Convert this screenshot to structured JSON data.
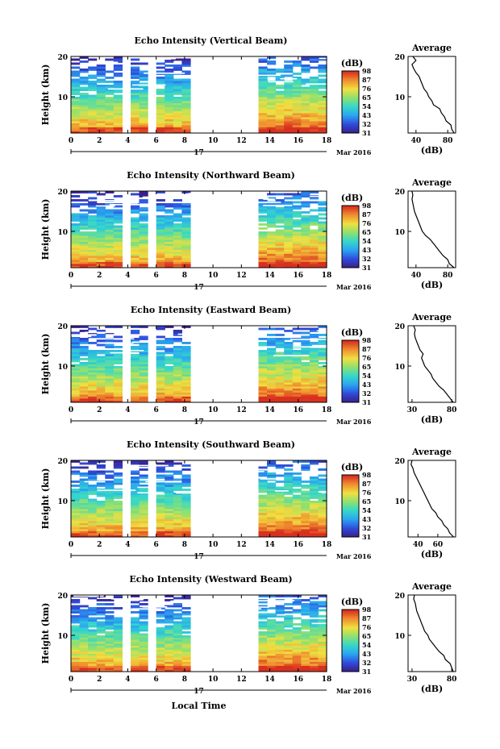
{
  "figure": {
    "x_axis_label": "Local Time",
    "date_center_label": "17",
    "date_right_label": "Mar 2016",
    "colorbar_unit": "(dB)",
    "colorbar_ticks": [
      "31",
      "32",
      "43",
      "54",
      "65",
      "76",
      "87",
      "98"
    ],
    "colormap": [
      "#3a1f8c",
      "#2f4fe0",
      "#2aa7f0",
      "#36d8c8",
      "#8fe070",
      "#f0e040",
      "#f09030",
      "#d83020"
    ],
    "profile_title": "Average",
    "profile_xlabel": "(dB)"
  },
  "chart_data": [
    {
      "type": "heatmap",
      "title": "Echo Intensity (Vertical Beam)",
      "ylabel": "Height (km)",
      "x_ticks": [
        "0",
        "2",
        "4",
        "6",
        "8",
        "10",
        "12",
        "14",
        "16",
        "18"
      ],
      "xlim": [
        0,
        18
      ],
      "y_ticks": [
        "10",
        "20"
      ],
      "ylim": [
        1,
        20
      ],
      "data_gaps_hours": [
        [
          3.8,
          4.3
        ],
        [
          5.5,
          5.8
        ],
        [
          8.3,
          13.2
        ]
      ],
      "profile": {
        "x_ticks": [
          "40",
          "80"
        ],
        "xlim": [
          30,
          90
        ],
        "heights_km": [
          1,
          2,
          3,
          4,
          5,
          6,
          7,
          8,
          9,
          10,
          11,
          12,
          13,
          14,
          15,
          16,
          17,
          18,
          19,
          20
        ],
        "avg_db": [
          88,
          85,
          84,
          78,
          76,
          72,
          70,
          62,
          60,
          56,
          54,
          50,
          48,
          46,
          44,
          40,
          37,
          35,
          40,
          36
        ]
      }
    },
    {
      "type": "heatmap",
      "title": "Echo Intensity (Northward Beam)",
      "ylabel": "Height (km)",
      "x_ticks": [
        "0",
        "2",
        "4",
        "6",
        "8",
        "10",
        "12",
        "14",
        "16",
        "18"
      ],
      "xlim": [
        0,
        18
      ],
      "y_ticks": [
        "10",
        "20"
      ],
      "ylim": [
        1,
        20
      ],
      "data_gaps_hours": [
        [
          3.8,
          4.3
        ],
        [
          5.5,
          5.8
        ],
        [
          8.3,
          13.2
        ]
      ],
      "profile": {
        "x_ticks": [
          "40",
          "80"
        ],
        "xlim": [
          30,
          90
        ],
        "heights_km": [
          1,
          2,
          3,
          4,
          5,
          6,
          7,
          8,
          9,
          10,
          11,
          12,
          13,
          14,
          15,
          16,
          17,
          18,
          19,
          20
        ],
        "avg_db": [
          88,
          82,
          80,
          74,
          70,
          66,
          62,
          58,
          52,
          48,
          46,
          44,
          42,
          40,
          38,
          37,
          36,
          35,
          36,
          35
        ]
      }
    },
    {
      "type": "heatmap",
      "title": "Echo Intensity (Eastward Beam)",
      "ylabel": "Height (km)",
      "x_ticks": [
        "0",
        "2",
        "4",
        "6",
        "8",
        "10",
        "12",
        "14",
        "16",
        "18"
      ],
      "xlim": [
        0,
        18
      ],
      "y_ticks": [
        "10",
        "20"
      ],
      "ylim": [
        1,
        20
      ],
      "data_gaps_hours": [
        [
          3.8,
          4.3
        ],
        [
          5.5,
          5.8
        ],
        [
          8.3,
          13.2
        ]
      ],
      "profile": {
        "x_ticks": [
          "30",
          "80"
        ],
        "xlim": [
          25,
          85
        ],
        "heights_km": [
          1,
          2,
          3,
          4,
          5,
          6,
          7,
          8,
          9,
          10,
          11,
          12,
          13,
          14,
          15,
          16,
          17,
          18,
          19,
          20
        ],
        "avg_db": [
          82,
          78,
          74,
          70,
          64,
          60,
          56,
          54,
          50,
          46,
          44,
          42,
          44,
          40,
          38,
          36,
          34,
          33,
          34,
          32
        ]
      }
    },
    {
      "type": "heatmap",
      "title": "Echo Intensity (Southward Beam)",
      "ylabel": "Height (km)",
      "x_ticks": [
        "0",
        "2",
        "4",
        "6",
        "8",
        "10",
        "12",
        "14",
        "16",
        "18"
      ],
      "xlim": [
        0,
        18
      ],
      "y_ticks": [
        "10",
        "20"
      ],
      "ylim": [
        1,
        20
      ],
      "data_gaps_hours": [
        [
          3.8,
          4.3
        ],
        [
          5.5,
          5.8
        ],
        [
          8.3,
          13.2
        ]
      ],
      "profile": {
        "x_ticks": [
          "40",
          "60"
        ],
        "xlim": [
          30,
          78
        ],
        "heights_km": [
          1,
          2,
          3,
          4,
          5,
          6,
          7,
          8,
          9,
          10,
          11,
          12,
          13,
          14,
          15,
          16,
          17,
          18,
          19,
          20
        ],
        "avg_db": [
          76,
          72,
          70,
          66,
          64,
          60,
          58,
          54,
          52,
          50,
          48,
          46,
          44,
          42,
          40,
          38,
          36,
          35,
          33,
          34
        ]
      }
    },
    {
      "type": "heatmap",
      "title": "Echo Intensity (Westward Beam)",
      "ylabel": "Height (km)",
      "x_ticks": [
        "0",
        "2",
        "4",
        "6",
        "8",
        "10",
        "12",
        "14",
        "16",
        "18"
      ],
      "xlim": [
        0,
        18
      ],
      "y_ticks": [
        "10",
        "20"
      ],
      "ylim": [
        1,
        20
      ],
      "data_gaps_hours": [
        [
          3.8,
          4.3
        ],
        [
          5.5,
          5.8
        ],
        [
          8.3,
          13.2
        ]
      ],
      "profile": {
        "x_ticks": [
          "30",
          "80"
        ],
        "xlim": [
          25,
          85
        ],
        "heights_km": [
          1,
          2,
          3,
          4,
          5,
          6,
          7,
          8,
          9,
          10,
          11,
          12,
          13,
          14,
          15,
          16,
          17,
          18,
          19,
          20
        ],
        "avg_db": [
          82,
          80,
          78,
          72,
          70,
          64,
          60,
          56,
          52,
          50,
          46,
          44,
          42,
          40,
          38,
          36,
          35,
          34,
          32,
          33
        ]
      }
    }
  ]
}
